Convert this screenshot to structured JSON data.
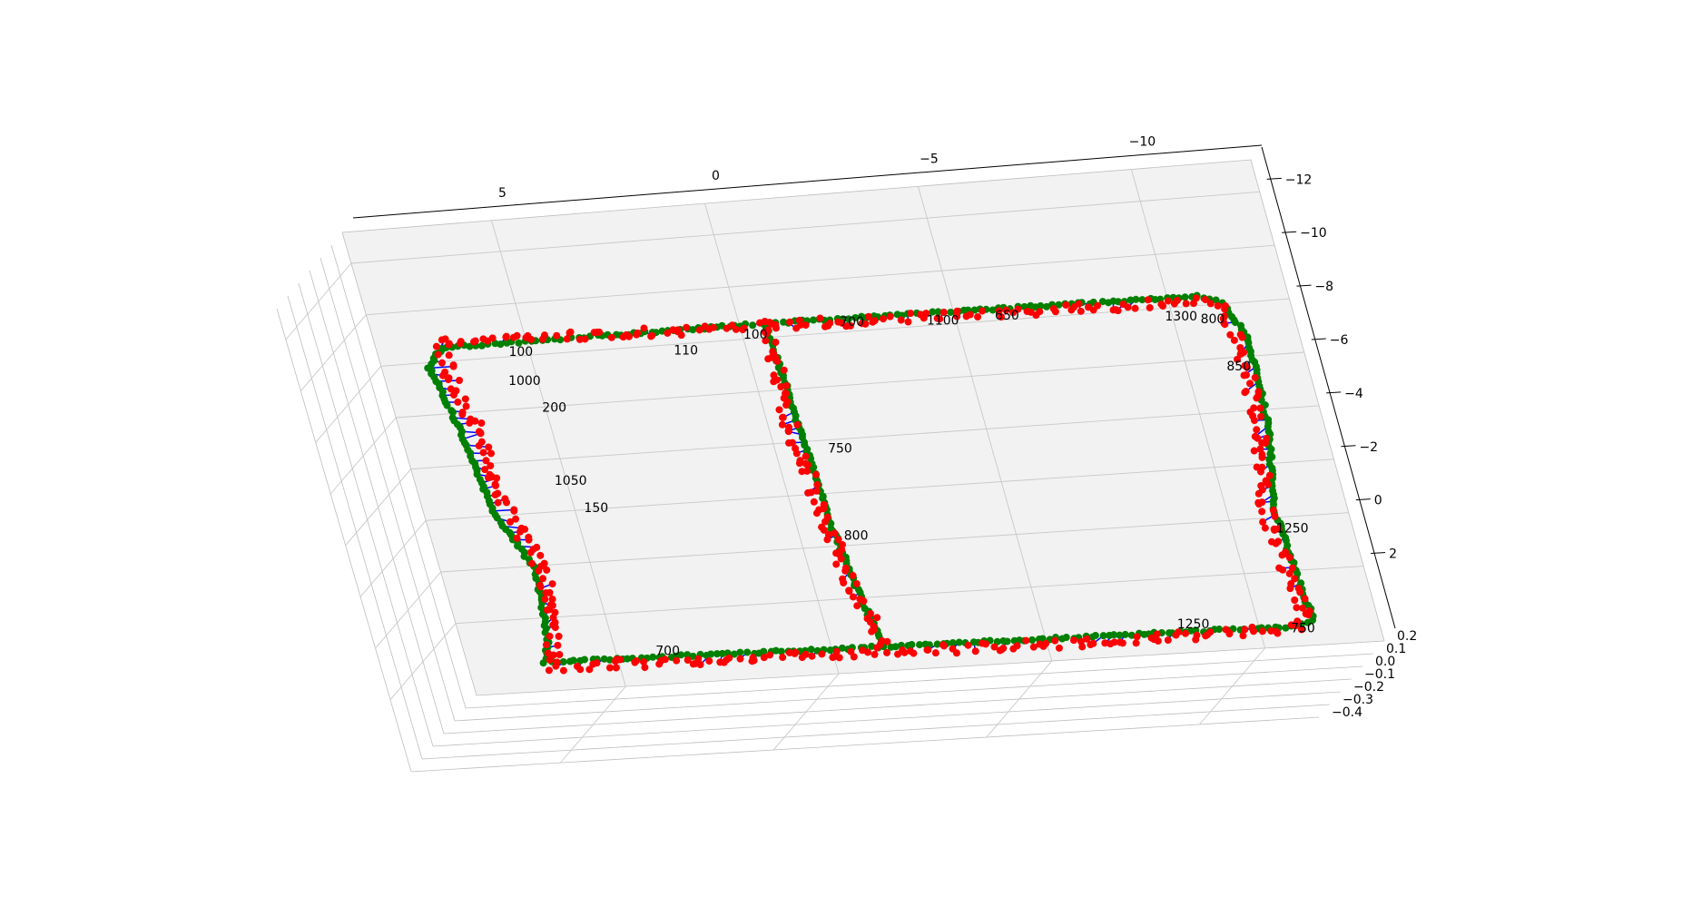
{
  "chart_data": {
    "type": "scatter",
    "projection": "3d",
    "title": "",
    "xlabel": "",
    "ylabel": "",
    "zlabel": "",
    "grid": true,
    "legend": "none",
    "x_ticks": [
      "5",
      "0",
      "−5",
      "−10"
    ],
    "y_ticks": [
      "−12",
      "−10",
      "−8",
      "−6",
      "−4",
      "−2",
      "0",
      "2"
    ],
    "z_ticks": [
      "−0.4",
      "−0.3",
      "−0.2",
      "−0.1",
      "0.0",
      "0.1",
      "0.2"
    ],
    "xlim": [
      8.5,
      -12.8
    ],
    "ylim": [
      -13.2,
      4.8
    ],
    "zlim": [
      -0.45,
      0.25
    ],
    "colors": {
      "ground_truth": "#008000",
      "estimate": "#ff0000",
      "error_line": "#0000ff",
      "pane": "#f2f2f2",
      "grid": "#c8c8c8"
    },
    "series": [
      {
        "role": "ground_truth",
        "marker": "o",
        "path": [
          [
            6.5,
            -9.2
          ],
          [
            -1.1,
            -9.2
          ],
          [
            -11.2,
            -9.0
          ],
          [
            -11.7,
            -8.7
          ],
          [
            -12.1,
            -7.4
          ],
          [
            -12.0,
            -4.0
          ],
          [
            -11.6,
            -1.0
          ],
          [
            -11.7,
            1.5
          ],
          [
            -11.8,
            3.2
          ],
          [
            -11.4,
            3.4
          ],
          [
            -6.0,
            3.3
          ],
          [
            -1.3,
            3.2
          ],
          [
            6.2,
            3.0
          ],
          [
            6.0,
            2.3
          ],
          [
            5.8,
            -0.5
          ],
          [
            6.4,
            -3.0
          ],
          [
            6.6,
            -6.0
          ],
          [
            6.9,
            -8.5
          ],
          [
            6.5,
            -9.2
          ]
        ]
      },
      {
        "role": "ground_truth",
        "marker": "o",
        "path": [
          [
            -1.1,
            -9.2
          ],
          [
            -1.2,
            -5.5
          ],
          [
            -1.3,
            -1.5
          ],
          [
            -1.5,
            1.3
          ],
          [
            -1.7,
            3.0
          ]
        ]
      },
      {
        "role": "estimate",
        "marker": "o",
        "path": [
          [
            6.5,
            -9.4
          ],
          [
            -1.1,
            -9.1
          ],
          [
            -11.2,
            -8.8
          ],
          [
            -11.7,
            -8.5
          ],
          [
            -11.9,
            -7.2
          ],
          [
            -11.8,
            -4.0
          ],
          [
            -11.4,
            -1.0
          ],
          [
            -11.5,
            1.5
          ],
          [
            -11.6,
            3.0
          ],
          [
            -11.3,
            3.5
          ],
          [
            -6.0,
            3.5
          ],
          [
            -1.3,
            3.4
          ],
          [
            6.0,
            3.2
          ],
          [
            5.9,
            2.5
          ],
          [
            5.6,
            -0.5
          ],
          [
            6.1,
            -3.0
          ],
          [
            6.2,
            -6.0
          ],
          [
            6.5,
            -8.5
          ],
          [
            6.5,
            -9.4
          ]
        ]
      },
      {
        "role": "estimate",
        "marker": "o",
        "path": [
          [
            -1.1,
            -9.1
          ],
          [
            -1.0,
            -5.5
          ],
          [
            -1.2,
            -1.5
          ],
          [
            -1.4,
            1.3
          ],
          [
            -1.8,
            3.1
          ]
        ]
      }
    ],
    "annotations": [
      {
        "text": "100",
        "x": 5.0,
        "y": -8.7
      },
      {
        "text": "1000",
        "x": 5.2,
        "y": -7.6
      },
      {
        "text": "200",
        "x": 4.6,
        "y": -6.5
      },
      {
        "text": "1050",
        "x": 4.8,
        "y": -3.7
      },
      {
        "text": "150",
        "x": 4.3,
        "y": -2.6
      },
      {
        "text": "700",
        "x": 3.6,
        "y": 3.0
      },
      {
        "text": "100",
        "x": -0.5,
        "y": -8.7
      },
      {
        "text": "110",
        "x": 1.2,
        "y": -8.3
      },
      {
        "text": "700",
        "x": -2.8,
        "y": -8.9
      },
      {
        "text": "1100",
        "x": -4.8,
        "y": -8.7
      },
      {
        "text": "650",
        "x": -6.4,
        "y": -8.7
      },
      {
        "text": "750",
        "x": -1.7,
        "y": -4.2
      },
      {
        "text": "800",
        "x": -1.5,
        "y": -0.9
      },
      {
        "text": "1300",
        "x": -10.3,
        "y": -8.2
      },
      {
        "text": "800",
        "x": -11.1,
        "y": -8.0
      },
      {
        "text": "850",
        "x": -11.4,
        "y": -6.2
      },
      {
        "text": "1250",
        "x": -11.5,
        "y": -0.1
      },
      {
        "text": "1250",
        "x": -8.6,
        "y": 3.2
      },
      {
        "text": "750",
        "x": -11.2,
        "y": 3.6
      }
    ]
  }
}
